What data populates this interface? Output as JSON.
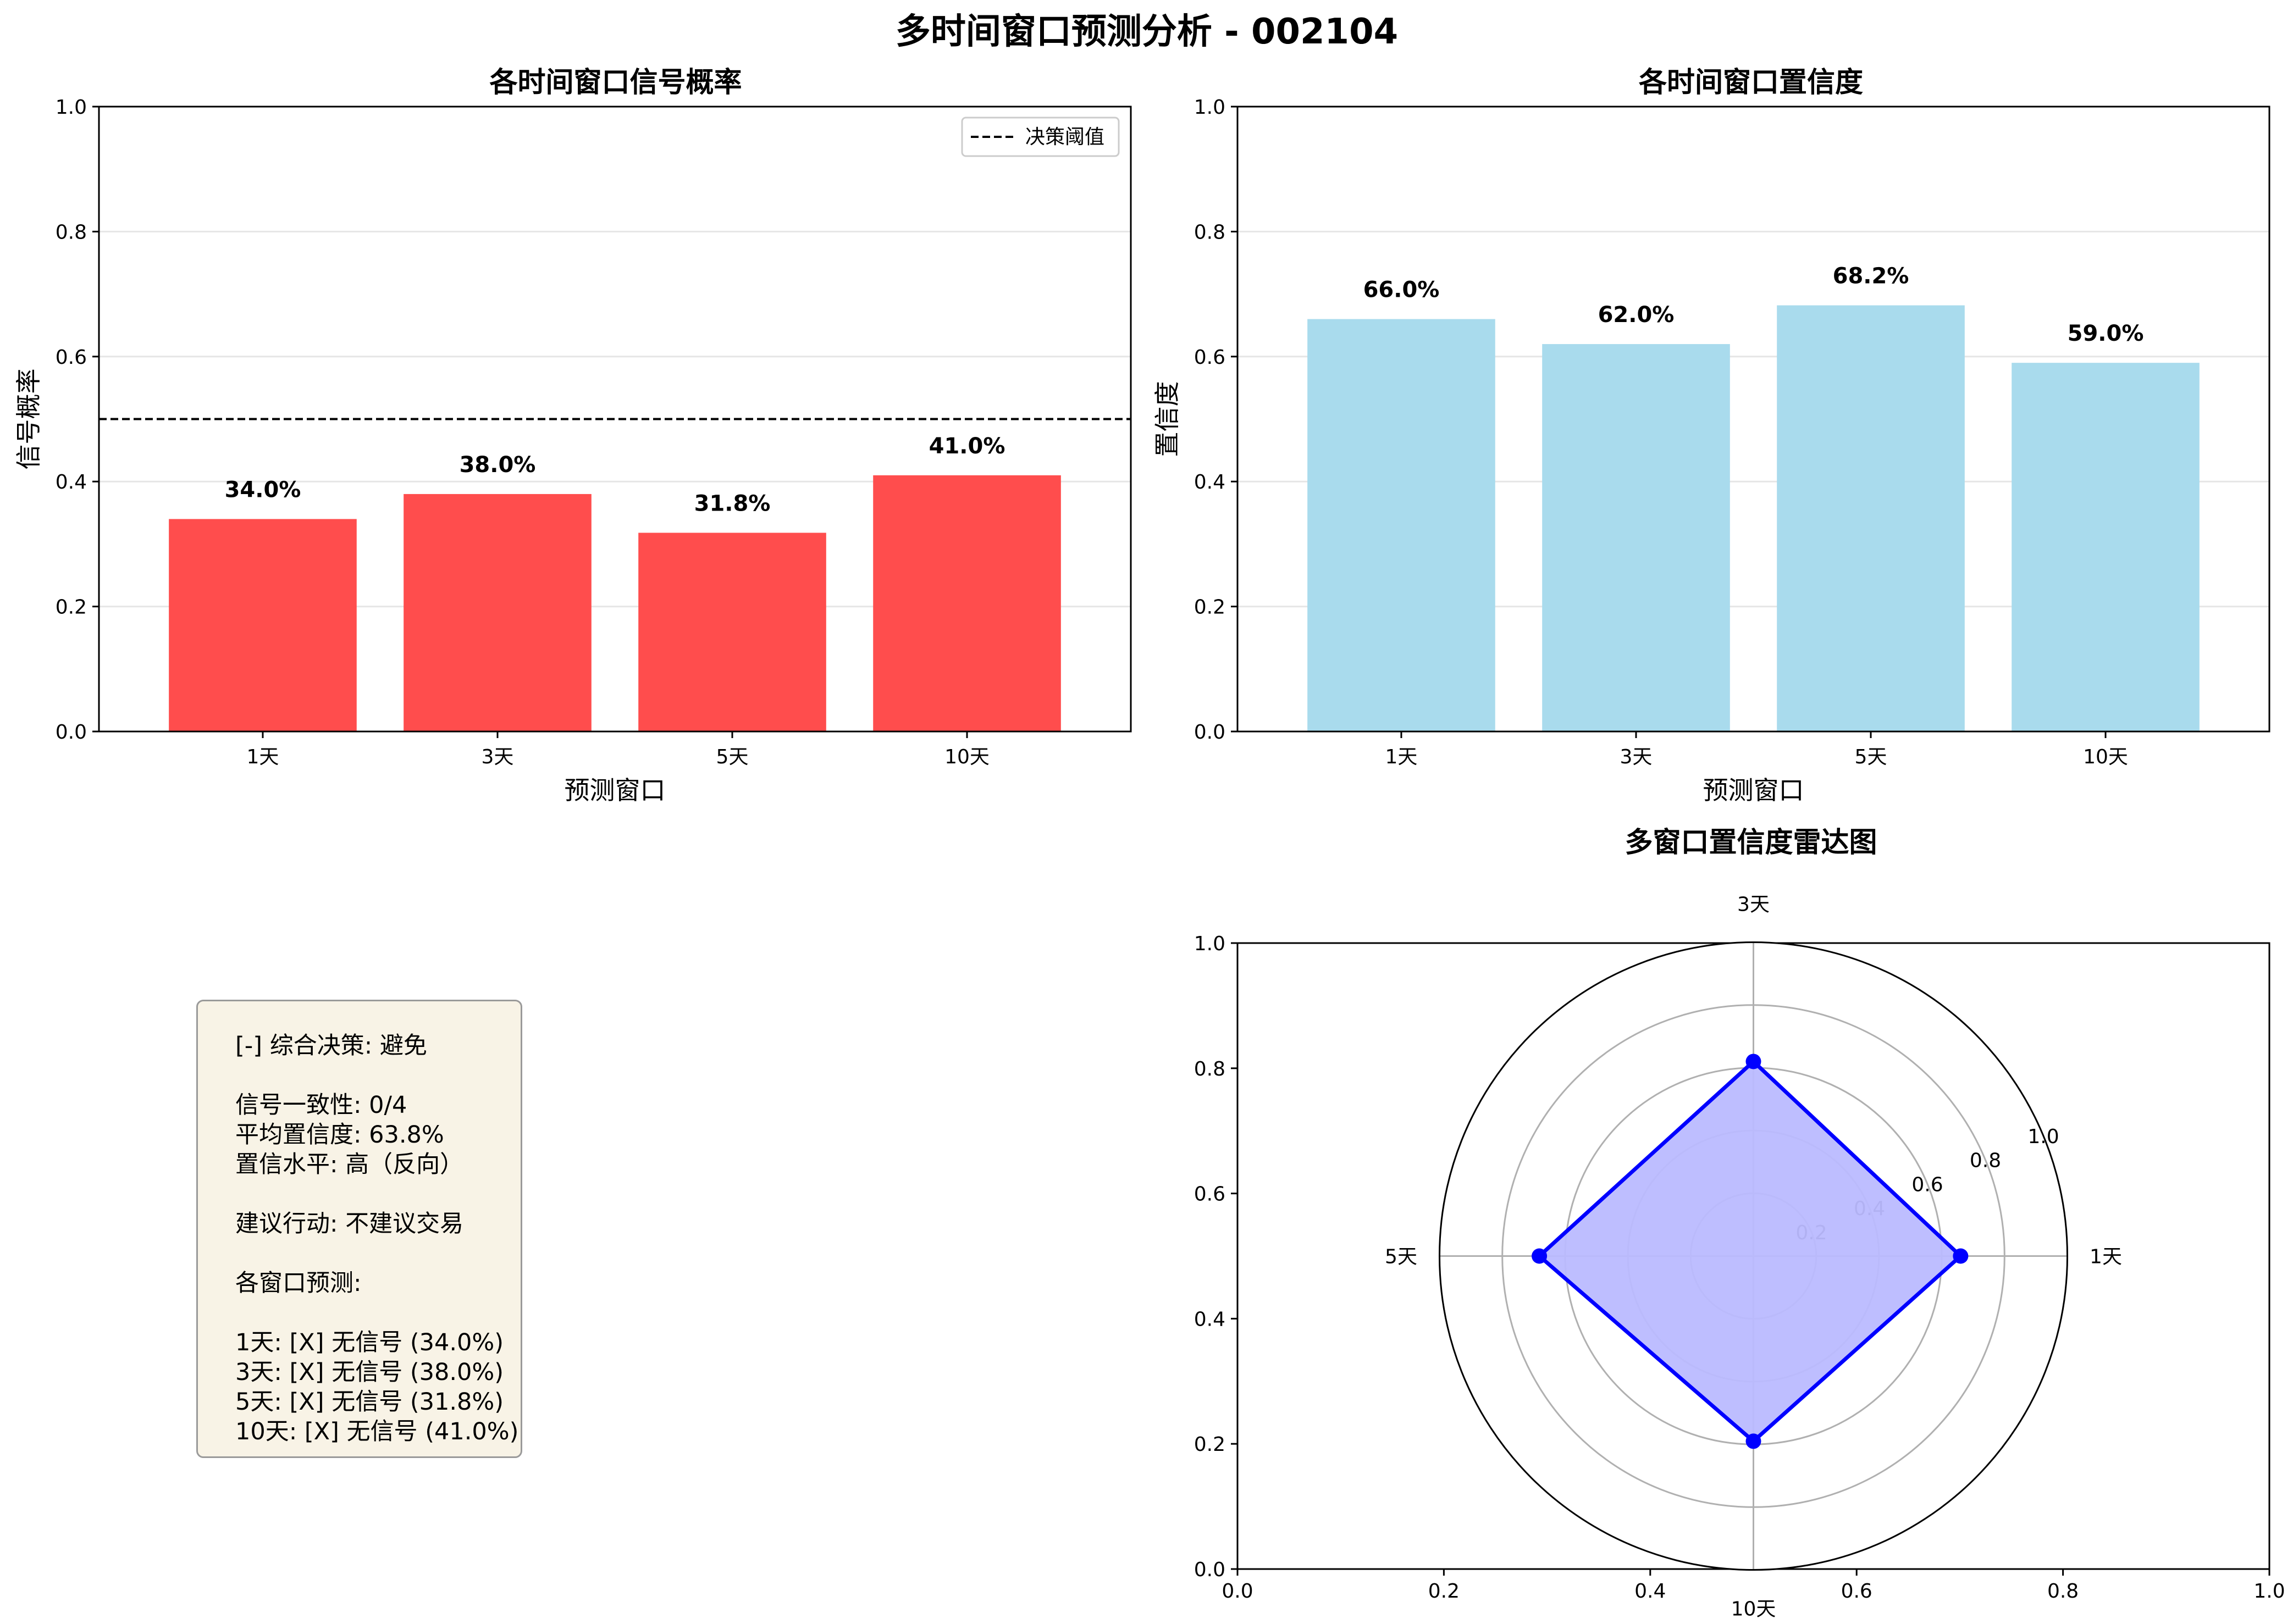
{
  "figure": {
    "title": "多时间窗口预测分析 - 002104"
  },
  "chart_data": [
    {
      "type": "bar",
      "title": "各时间窗口信号概率",
      "xlabel": "预测窗口",
      "ylabel": "信号概率",
      "categories": [
        "1天",
        "3天",
        "5天",
        "10天"
      ],
      "values": [
        0.34,
        0.38,
        0.318,
        0.41
      ],
      "data_labels": [
        "34.0%",
        "38.0%",
        "31.8%",
        "41.0%"
      ],
      "ylim": [
        0,
        1
      ],
      "yticks": [
        "0.0",
        "0.2",
        "0.4",
        "0.6",
        "0.8",
        "1.0"
      ],
      "threshold": {
        "value": 0.5,
        "label": "决策阈值",
        "style": "dashed"
      },
      "legend": "top-right",
      "grid": "y",
      "color": "#ff4d4d"
    },
    {
      "type": "bar",
      "title": "各时间窗口置信度",
      "xlabel": "预测窗口",
      "ylabel": "置信度",
      "categories": [
        "1天",
        "3天",
        "5天",
        "10天"
      ],
      "values": [
        0.66,
        0.62,
        0.682,
        0.59
      ],
      "data_labels": [
        "66.0%",
        "62.0%",
        "68.2%",
        "59.0%"
      ],
      "ylim": [
        0,
        1
      ],
      "yticks": [
        "0.0",
        "0.2",
        "0.4",
        "0.6",
        "0.8",
        "1.0"
      ],
      "grid": "y",
      "color": "#a9dbed"
    },
    {
      "type": "radar",
      "title": "多窗口置信度雷达图",
      "axes": [
        "1天",
        "3天",
        "5天",
        "10天"
      ],
      "values": [
        0.66,
        0.62,
        0.682,
        0.59
      ],
      "rlim": [
        0,
        1
      ],
      "rticks": [
        "0.2",
        "0.4",
        "0.6",
        "0.8",
        "1.0"
      ],
      "frame_xticks": [
        "0.0",
        "0.2",
        "0.4",
        "0.6",
        "0.8",
        "1.0"
      ],
      "frame_yticks": [
        "0.0",
        "0.2",
        "0.4",
        "0.6",
        "0.8",
        "1.0"
      ],
      "line_color": "#0000ff",
      "fill_color": "#babaff"
    }
  ],
  "summary": {
    "decision": "[-] 综合决策: 避免",
    "consistency": "信号一致性: 0/4",
    "avg_confidence": "平均置信度: 63.8%",
    "confidence_level": "置信水平: 高（反向）",
    "action": "建议行动: 不建议交易",
    "window_header": "各窗口预测:",
    "windows": [
      "1天: [X] 无信号 (34.0%)",
      "3天: [X] 无信号 (38.0%)",
      "5天: [X] 无信号 (31.8%)",
      "10天: [X] 无信号 (41.0%)"
    ]
  }
}
